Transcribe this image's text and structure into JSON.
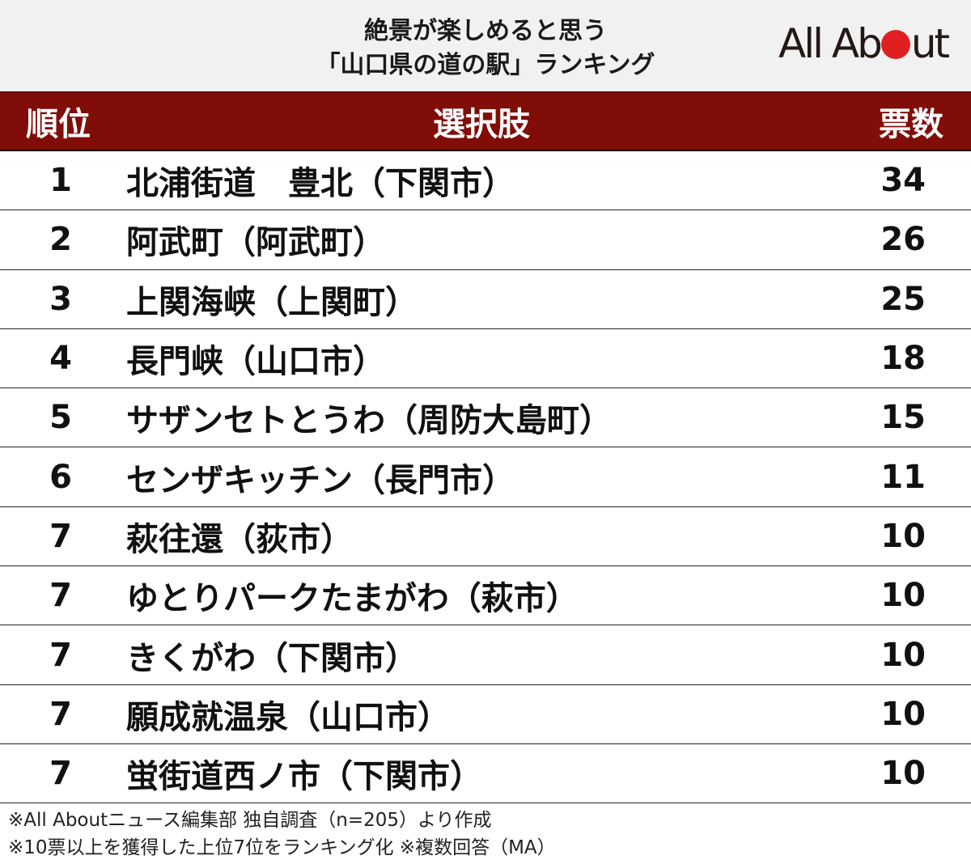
{
  "title": {
    "line1": "絶景が楽しめると思う",
    "line2": "「山口県の道の駅」ランキング"
  },
  "logo": {
    "text_before": "All Ab",
    "text_after": "ut",
    "dot_color": "#e02020"
  },
  "colors": {
    "header_bg": "#800d08",
    "title_bg": "#f1f1f1"
  },
  "table": {
    "headers": {
      "rank": "順位",
      "name": "選択肢",
      "votes": "票数"
    },
    "rows": [
      {
        "rank": "1",
        "name": "北浦街道　豊北（下関市）",
        "votes": "34"
      },
      {
        "rank": "2",
        "name": "阿武町（阿武町）",
        "votes": "26"
      },
      {
        "rank": "3",
        "name": "上関海峡（上関町）",
        "votes": "25"
      },
      {
        "rank": "4",
        "name": "長門峡（山口市）",
        "votes": "18"
      },
      {
        "rank": "5",
        "name": "サザンセトとうわ（周防大島町）",
        "votes": "15"
      },
      {
        "rank": "6",
        "name": "センザキッチン（長門市）",
        "votes": "11"
      },
      {
        "rank": "7",
        "name": "萩往還（荻市）",
        "votes": "10"
      },
      {
        "rank": "7",
        "name": "ゆとりパークたまがわ（萩市）",
        "votes": "10"
      },
      {
        "rank": "7",
        "name": "きくがわ（下関市）",
        "votes": "10"
      },
      {
        "rank": "7",
        "name": "願成就温泉（山口市）",
        "votes": "10"
      },
      {
        "rank": "7",
        "name": "蛍街道西ノ市（下関市）",
        "votes": "10"
      }
    ]
  },
  "notes": {
    "line1": "※All Aboutニュース編集部 独自調査（n=205）より作成",
    "line2": "※10票以上を獲得した上位7位をランキング化 ※複数回答（MA）"
  }
}
